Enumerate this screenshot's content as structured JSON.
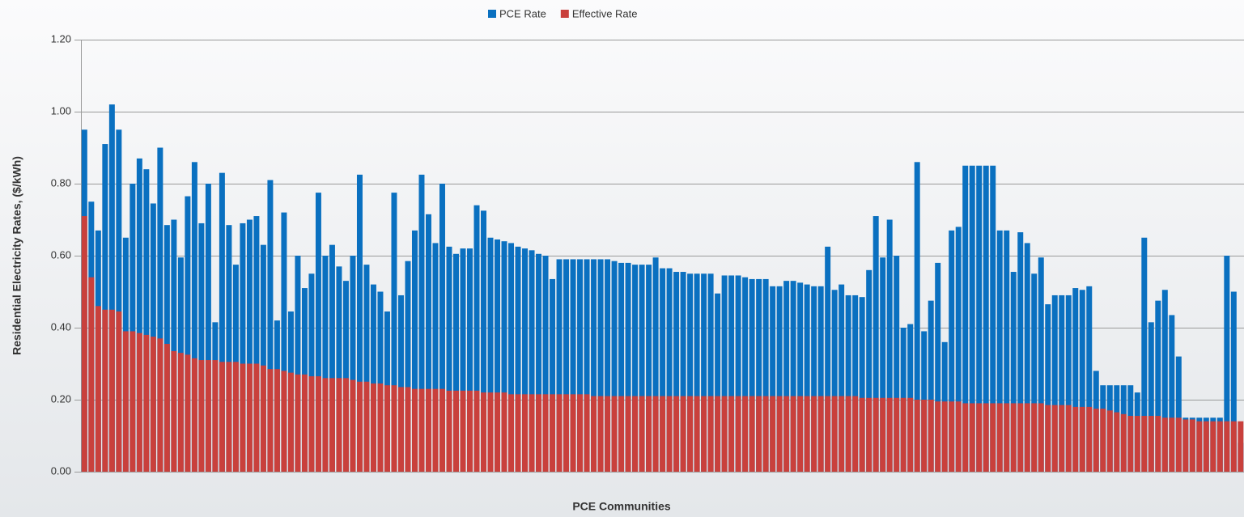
{
  "chart_data": {
    "type": "bar",
    "xlabel": "PCE Communities",
    "ylabel": "Residential Electricity Rates, ($/kWh)",
    "ylim": [
      0,
      1.2
    ],
    "yticks": [
      {
        "value": 0,
        "label": "0.00"
      },
      {
        "value": 0.2,
        "label": "0.20"
      },
      {
        "value": 0.4,
        "label": "0.40"
      },
      {
        "value": 0.6,
        "label": "0.60"
      },
      {
        "value": 0.8,
        "label": "0.80"
      },
      {
        "value": 1.0,
        "label": "1.00"
      },
      {
        "value": 1.2,
        "label": "1.20"
      }
    ],
    "grid": true,
    "legend": "top",
    "overlap": true,
    "series": [
      {
        "name": "PCE Rate",
        "color": "#0a70c0",
        "values": [
          0.95,
          0.75,
          0.67,
          0.91,
          1.02,
          0.95,
          0.65,
          0.8,
          0.87,
          0.84,
          0.745,
          0.9,
          0.685,
          0.7,
          0.595,
          0.765,
          0.86,
          0.69,
          0.8,
          0.415,
          0.83,
          0.685,
          0.575,
          0.69,
          0.7,
          0.71,
          0.63,
          0.81,
          0.42,
          0.72,
          0.445,
          0.6,
          0.51,
          0.55,
          0.775,
          0.6,
          0.63,
          0.57,
          0.53,
          0.6,
          0.825,
          0.575,
          0.52,
          0.5,
          0.445,
          0.775,
          0.49,
          0.585,
          0.67,
          0.825,
          0.715,
          0.635,
          0.8,
          0.625,
          0.605,
          0.62,
          0.62,
          0.74,
          0.725,
          0.65,
          0.645,
          0.64,
          0.635,
          0.625,
          0.62,
          0.615,
          0.605,
          0.6,
          0.535,
          0.59,
          0.59,
          0.59,
          0.59,
          0.59,
          0.59,
          0.59,
          0.59,
          0.585,
          0.58,
          0.58,
          0.575,
          0.575,
          0.575,
          0.595,
          0.565,
          0.565,
          0.555,
          0.555,
          0.55,
          0.55,
          0.55,
          0.55,
          0.495,
          0.545,
          0.545,
          0.545,
          0.54,
          0.535,
          0.535,
          0.535,
          0.515,
          0.515,
          0.53,
          0.53,
          0.525,
          0.52,
          0.515,
          0.515,
          0.625,
          0.505,
          0.52,
          0.49,
          0.49,
          0.485,
          0.56,
          0.71,
          0.595,
          0.7,
          0.6,
          0.4,
          0.41,
          0.86,
          0.39,
          0.475,
          0.58,
          0.36,
          0.67,
          0.68,
          0.85,
          0.85,
          0.85,
          0.85,
          0.85,
          0.67,
          0.67,
          0.555,
          0.665,
          0.635,
          0.55,
          0.595,
          0.465,
          0.49,
          0.49,
          0.49,
          0.51,
          0.505,
          0.515,
          0.28,
          0.24,
          0.24,
          0.24,
          0.24,
          0.24,
          0.22,
          0.65,
          0.415,
          0.475,
          0.505,
          0.435,
          0.32,
          0.15,
          0.15,
          0.15,
          0.15,
          0.15,
          0.15,
          0.6,
          0.5,
          0.08
        ]
      },
      {
        "name": "Effective Rate",
        "color": "#c9403c",
        "values": [
          0.71,
          0.54,
          0.46,
          0.45,
          0.45,
          0.445,
          0.39,
          0.39,
          0.385,
          0.38,
          0.375,
          0.37,
          0.355,
          0.335,
          0.33,
          0.325,
          0.315,
          0.31,
          0.31,
          0.31,
          0.305,
          0.305,
          0.305,
          0.3,
          0.3,
          0.3,
          0.295,
          0.285,
          0.285,
          0.28,
          0.275,
          0.27,
          0.27,
          0.265,
          0.265,
          0.26,
          0.26,
          0.26,
          0.26,
          0.255,
          0.25,
          0.25,
          0.245,
          0.245,
          0.24,
          0.24,
          0.235,
          0.235,
          0.23,
          0.23,
          0.23,
          0.23,
          0.23,
          0.225,
          0.225,
          0.225,
          0.225,
          0.225,
          0.22,
          0.22,
          0.22,
          0.22,
          0.215,
          0.215,
          0.215,
          0.215,
          0.215,
          0.215,
          0.215,
          0.215,
          0.215,
          0.215,
          0.215,
          0.215,
          0.21,
          0.21,
          0.21,
          0.21,
          0.21,
          0.21,
          0.21,
          0.21,
          0.21,
          0.21,
          0.21,
          0.21,
          0.21,
          0.21,
          0.21,
          0.21,
          0.21,
          0.21,
          0.21,
          0.21,
          0.21,
          0.21,
          0.21,
          0.21,
          0.21,
          0.21,
          0.21,
          0.21,
          0.21,
          0.21,
          0.21,
          0.21,
          0.21,
          0.21,
          0.21,
          0.21,
          0.21,
          0.21,
          0.21,
          0.205,
          0.205,
          0.205,
          0.205,
          0.205,
          0.205,
          0.205,
          0.205,
          0.2,
          0.2,
          0.2,
          0.195,
          0.195,
          0.195,
          0.195,
          0.19,
          0.19,
          0.19,
          0.19,
          0.19,
          0.19,
          0.19,
          0.19,
          0.19,
          0.19,
          0.19,
          0.19,
          0.185,
          0.185,
          0.185,
          0.185,
          0.18,
          0.18,
          0.18,
          0.175,
          0.175,
          0.17,
          0.165,
          0.16,
          0.155,
          0.155,
          0.155,
          0.155,
          0.155,
          0.15,
          0.15,
          0.15,
          0.145,
          0.145,
          0.14,
          0.14,
          0.14,
          0.14,
          0.14,
          0.14,
          0.14,
          0.14,
          0.08
        ]
      }
    ]
  }
}
